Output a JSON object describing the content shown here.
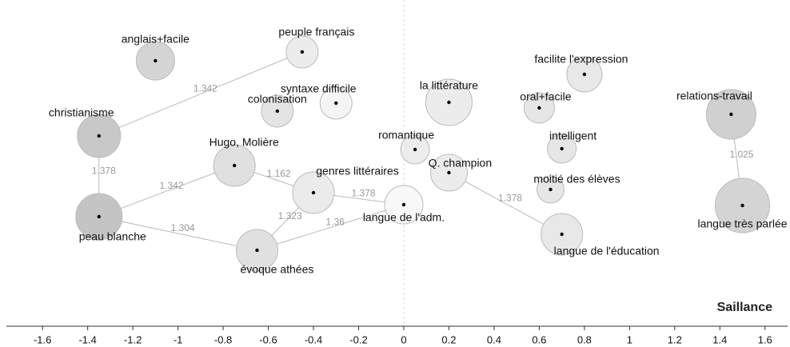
{
  "chart_data": {
    "type": "network",
    "x_label": "Saillance",
    "xlim": [
      -1.76,
      1.7
    ],
    "xticks": [
      -1.6,
      -1.4,
      -1.2,
      -1,
      -0.8,
      -0.6,
      -0.4,
      -0.2,
      0,
      0.2,
      0.4,
      0.6,
      0.8,
      1,
      1.2,
      1.4,
      1.6
    ],
    "nodes": [
      {
        "label": "anglais+facile",
        "x": -1.1,
        "color": "#d4d4d4"
      },
      {
        "label": "peuple français",
        "x": -0.45,
        "color": "#ececec"
      },
      {
        "label": "christianisme",
        "x": -1.35,
        "color": "#c8c8c8"
      },
      {
        "label": "colonisation",
        "x": -0.56,
        "color": "#e4e4e4"
      },
      {
        "label": "syntaxe difficile",
        "x": -0.3,
        "color": "#f4f4f4"
      },
      {
        "label": "la littérature",
        "x": 0.2,
        "color": "#ececec"
      },
      {
        "label": "oral+facile",
        "x": 0.6,
        "color": "#e6e6e6"
      },
      {
        "label": "facilite l'expression",
        "x": 0.8,
        "color": "#e8e8e8"
      },
      {
        "label": "relations-travail",
        "x": 1.45,
        "color": "#d0d0d0"
      },
      {
        "label": "intelligent",
        "x": 0.7,
        "color": "#e6e6e6"
      },
      {
        "label": "romantique",
        "x": 0.05,
        "color": "#ececec"
      },
      {
        "label": "Q. champion",
        "x": 0.2,
        "color": "#ececec"
      },
      {
        "label": "Hugo, Molière",
        "x": -0.75,
        "color": "#e0e0e0"
      },
      {
        "label": "genres littéraires",
        "x": -0.4,
        "color": "#ebebeb"
      },
      {
        "label": "langue de l'adm.",
        "x": 0,
        "color": "#f8f8f8"
      },
      {
        "label": "moitié des élèves",
        "x": 0.65,
        "color": "#e6e6e6"
      },
      {
        "label": "peau blanche",
        "x": -1.35,
        "color": "#c4c4c4"
      },
      {
        "label": "évoque athées",
        "x": -0.65,
        "color": "#e0e0e0"
      },
      {
        "label": "langue de l'éducation",
        "x": 0.7,
        "color": "#e8e8e8"
      },
      {
        "label": "langue très parlée",
        "x": 1.5,
        "color": "#d4d4d4"
      }
    ],
    "edges": [
      {
        "from": "christianisme",
        "to": "peuple français",
        "value": 1.342
      },
      {
        "from": "christianisme",
        "to": "peau blanche",
        "value": 1.378
      },
      {
        "from": "peau blanche",
        "to": "Hugo, Molière",
        "value": 1.342
      },
      {
        "from": "peau blanche",
        "to": "évoque athées",
        "value": 1.304
      },
      {
        "from": "Hugo, Molière",
        "to": "genres littéraires",
        "value": 1.162
      },
      {
        "from": "genres littéraires",
        "to": "langue de l'adm.",
        "value": 1.378
      },
      {
        "from": "genres littéraires",
        "to": "évoque athées",
        "value": 1.323
      },
      {
        "from": "évoque athées",
        "to": "langue de l'adm.",
        "value": 1.36
      },
      {
        "from": "Q. champion",
        "to": "langue de l'éducation",
        "value": 1.378
      },
      {
        "from": "relations-travail",
        "to": "langue très parlée",
        "value": 1.025
      }
    ]
  }
}
